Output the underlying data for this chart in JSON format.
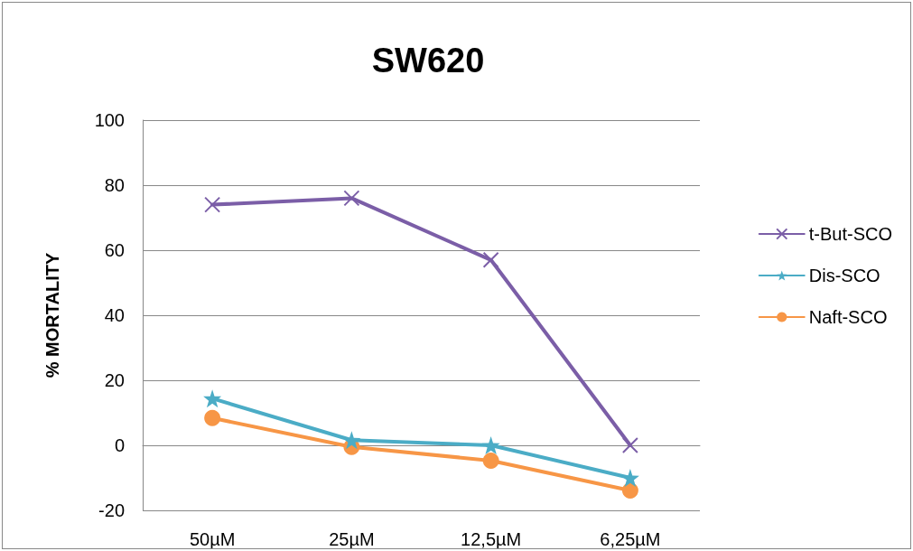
{
  "chart_data": {
    "type": "line",
    "title": "SW620",
    "ylabel": "% MORTALITY",
    "categories": [
      "50µM",
      "25µM",
      "12,5µM",
      "6,25µM"
    ],
    "series": [
      {
        "name": "t-But-SCO",
        "color": "#7b5ea7",
        "marker": "cross",
        "values": [
          74,
          76,
          57,
          0
        ]
      },
      {
        "name": "Dis-SCO",
        "color": "#4bacc6",
        "marker": "star",
        "values": [
          14.4,
          1.6,
          0,
          -10
        ]
      },
      {
        "name": "Naft-SCO",
        "color": "#f79646",
        "marker": "circle",
        "values": [
          8.4,
          -0.5,
          -4.7,
          -13.9
        ]
      }
    ],
    "ylim": [
      -20,
      100
    ],
    "yticks": [
      -20,
      0,
      20,
      40,
      60,
      80,
      100
    ],
    "grid": "y",
    "legend": "right"
  }
}
